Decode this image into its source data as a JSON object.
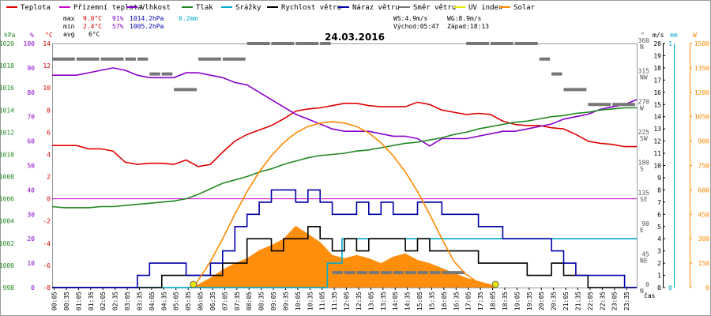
{
  "chart_data": {
    "type": "line",
    "title": "24.03.2016",
    "xlabel": "čas",
    "x_ticks": [
      "00:05",
      "00:35",
      "01:05",
      "01:35",
      "02:05",
      "02:35",
      "03:05",
      "03:35",
      "04:05",
      "04:35",
      "05:05",
      "05:35",
      "06:05",
      "06:35",
      "07:05",
      "07:35",
      "08:05",
      "08:35",
      "09:05",
      "09:35",
      "10:05",
      "10:35",
      "11:05",
      "11:35",
      "12:05",
      "12:35",
      "13:05",
      "13:35",
      "14:05",
      "14:35",
      "15:05",
      "15:35",
      "16:05",
      "16:35",
      "17:05",
      "17:35",
      "18:05",
      "18:35",
      "19:05",
      "19:35",
      "20:05",
      "20:35",
      "21:05",
      "21:35",
      "22:05",
      "22:35",
      "23:05",
      "23:35"
    ],
    "legend": [
      {
        "name": "Teplota",
        "color": "#e00000"
      },
      {
        "name": "Přízemní teplota",
        "color": "#cc00cc"
      },
      {
        "name": "Vlhkost",
        "color": "#8800cc"
      },
      {
        "name": "Tlak",
        "color": "#228822"
      },
      {
        "name": "Srážky",
        "color": "#00aacc"
      },
      {
        "name": "Rychlost větru",
        "color": "#000000"
      },
      {
        "name": "Náraz větru",
        "color": "#0000aa"
      },
      {
        "name": "Směr větru",
        "color": "#777777"
      },
      {
        "name": "UV index",
        "color": "#e6e600"
      },
      {
        "name": "Solar",
        "color": "#ff8800"
      }
    ],
    "stats": {
      "max_label": "max",
      "max_temp": "9.0°C",
      "max_hum": "91%",
      "max_press": "1014.2hPa",
      "max_rain": "0.2mm",
      "min_label": "min",
      "min_temp": "2.4°C",
      "min_hum": "57%",
      "min_press": "1005.2hPa",
      "avg_label": "avg",
      "avg_temp": "6°C",
      "ws": "WS:4.9m/s",
      "wg": "WG:8.9m/s",
      "sunrise": "Východ:05:47",
      "sunset": "Západ:18:13"
    },
    "axes": {
      "pressure": {
        "label": "hPa",
        "min": 998,
        "max": 1020,
        "ticks": [
          998,
          1000,
          1002,
          1004,
          1006,
          1008,
          1010,
          1012,
          1014,
          1016,
          1018,
          1020
        ],
        "color": "#228822"
      },
      "humidity": {
        "label": "%",
        "min": 0,
        "max": 100,
        "ticks": [
          0,
          10,
          20,
          30,
          40,
          50,
          60,
          70,
          80,
          90,
          100
        ],
        "color": "#8800cc"
      },
      "temperature": {
        "label": "°C",
        "min": -8,
        "max": 14,
        "ticks": [
          -8,
          -6,
          -4,
          -2,
          0,
          2,
          4,
          6,
          8,
          10,
          12,
          14
        ],
        "color": "#e00000"
      },
      "direction": {
        "label": "°",
        "min": 0,
        "max": 360,
        "ticks": [
          0,
          45,
          90,
          135,
          180,
          225,
          270,
          315,
          360
        ],
        "compass": [
          "N",
          "NE",
          "E",
          "SE",
          "S",
          "SW",
          "W",
          "NW",
          "N"
        ],
        "color": "#555555"
      },
      "wind": {
        "label": "m/s",
        "min": 0,
        "max": 20,
        "ticks": [
          0,
          1,
          2,
          3,
          4,
          5,
          6,
          7,
          8,
          9,
          10,
          11,
          12,
          13,
          14,
          15,
          16,
          17,
          18,
          19,
          20
        ],
        "color": "#000000"
      },
      "rain": {
        "label": "mm",
        "min": 0,
        "max": 1,
        "ticks": [
          0,
          1
        ],
        "color": "#00aacc"
      },
      "solar": {
        "label": "W",
        "min": 0,
        "max": 1500,
        "ticks": [
          0,
          150,
          300,
          450,
          600,
          750,
          900,
          1050,
          1200,
          1350,
          1500
        ],
        "color": "#ff8800"
      }
    },
    "series": [
      {
        "name": "Teplota",
        "axis": "temperature",
        "color": "#e00000",
        "x": [
          0,
          0.5,
          1,
          1.5,
          2,
          2.5,
          3,
          3.5,
          4,
          4.5,
          5,
          5.5,
          6,
          6.5,
          7,
          7.5,
          8,
          8.5,
          9,
          9.5,
          10,
          10.5,
          11,
          11.5,
          12,
          12.5,
          13,
          13.5,
          14,
          14.5,
          15,
          15.5,
          16,
          16.5,
          17,
          17.5,
          18,
          18.5,
          19,
          19.5,
          20,
          20.5,
          21,
          21.5,
          22,
          22.5,
          23,
          23.5,
          24
        ],
        "values": [
          4.8,
          4.8,
          4.8,
          4.5,
          4.5,
          4.3,
          3.3,
          3.1,
          3.2,
          3.2,
          3.1,
          3.5,
          2.9,
          3.1,
          4.2,
          5.2,
          5.8,
          6.2,
          6.6,
          7.2,
          7.9,
          8.1,
          8.2,
          8.4,
          8.6,
          8.6,
          8.4,
          8.3,
          8.3,
          8.3,
          8.7,
          8.5,
          8.0,
          7.8,
          7.6,
          7.7,
          7.6,
          7.0,
          6.7,
          6.6,
          6.6,
          6.4,
          6.3,
          5.8,
          5.2,
          5.0,
          4.9,
          4.7,
          4.7
        ]
      },
      {
        "name": "Přízemní teplota",
        "axis": "temperature",
        "color": "#cc00cc",
        "x": [
          0,
          24
        ],
        "values": [
          0,
          0
        ]
      },
      {
        "name": "Vlhkost",
        "axis": "humidity",
        "color": "#8800cc",
        "x": [
          0,
          0.5,
          1,
          1.5,
          2,
          2.5,
          3,
          3.5,
          4,
          4.5,
          5,
          5.5,
          6,
          6.5,
          7,
          7.5,
          8,
          8.5,
          9,
          9.5,
          10,
          10.5,
          11,
          11.5,
          12,
          12.5,
          13,
          13.5,
          14,
          14.5,
          15,
          15.5,
          16,
          16.5,
          17,
          17.5,
          18,
          18.5,
          19,
          19.5,
          20,
          20.5,
          21,
          21.5,
          22,
          22.5,
          23,
          23.5,
          24
        ],
        "values": [
          87,
          87,
          87,
          88,
          89,
          90,
          89,
          87,
          86,
          86,
          86,
          88,
          88,
          87,
          86,
          84,
          83,
          80,
          77,
          74,
          71,
          69,
          67,
          65,
          64,
          64,
          64,
          63,
          62,
          62,
          61,
          58,
          61,
          61,
          61,
          62,
          63,
          64,
          64,
          65,
          66,
          67,
          69,
          70,
          71,
          73,
          74,
          75,
          77
        ]
      },
      {
        "name": "Tlak",
        "axis": "pressure",
        "color": "#228822",
        "x": [
          0,
          0.5,
          1,
          1.5,
          2,
          2.5,
          3,
          3.5,
          4,
          4.5,
          5,
          5.5,
          6,
          6.5,
          7,
          7.5,
          8,
          8.5,
          9,
          9.5,
          10,
          10.5,
          11,
          11.5,
          12,
          12.5,
          13,
          13.5,
          14,
          14.5,
          15,
          15.5,
          16,
          16.5,
          17,
          17.5,
          18,
          18.5,
          19,
          19.5,
          20,
          20.5,
          21,
          21.5,
          22,
          22.5,
          23,
          23.5,
          24
        ],
        "values": [
          1005.3,
          1005.2,
          1005.2,
          1005.2,
          1005.3,
          1005.3,
          1005.4,
          1005.5,
          1005.6,
          1005.7,
          1005.8,
          1006.0,
          1006.4,
          1006.9,
          1007.4,
          1007.7,
          1008.0,
          1008.4,
          1008.7,
          1009.1,
          1009.4,
          1009.7,
          1009.9,
          1010.0,
          1010.1,
          1010.3,
          1010.4,
          1010.6,
          1010.8,
          1011.0,
          1011.1,
          1011.3,
          1011.5,
          1011.8,
          1012.0,
          1012.3,
          1012.5,
          1012.7,
          1012.9,
          1013.0,
          1013.2,
          1013.4,
          1013.5,
          1013.7,
          1013.8,
          1014.0,
          1014.1,
          1014.2,
          1014.2
        ]
      },
      {
        "name": "Srážky",
        "axis": "rain",
        "color": "#00aacc",
        "x": [
          0,
          11.3,
          11.3,
          11.9,
          11.9,
          24
        ],
        "values": [
          0,
          0,
          0.1,
          0.1,
          0.2,
          0.2
        ]
      },
      {
        "name": "Rychlost větru",
        "axis": "wind",
        "color": "#000000",
        "x": [
          0,
          0.5,
          1,
          1.5,
          2,
          2.5,
          3,
          3.5,
          4,
          4.5,
          5,
          5.5,
          6,
          6.5,
          7,
          7.5,
          8,
          8.5,
          9,
          9.5,
          10,
          10.5,
          11,
          11.5,
          12,
          12.5,
          13,
          13.5,
          14,
          14.5,
          15,
          15.5,
          16,
          16.5,
          17,
          17.5,
          18,
          18.5,
          19,
          19.5,
          20,
          20.5,
          21,
          21.5,
          22,
          22.5,
          23,
          23.5,
          24
        ],
        "values": [
          0,
          0,
          0,
          0,
          0,
          0,
          0,
          0,
          0,
          1,
          1,
          1,
          1,
          1,
          2,
          2,
          4,
          4,
          3,
          4,
          4,
          5,
          4,
          3,
          4,
          3,
          4,
          4,
          4,
          3,
          4,
          3,
          3,
          3,
          3,
          2,
          2,
          2,
          2,
          1,
          1,
          2,
          1,
          1,
          0,
          0,
          0,
          0,
          0
        ]
      },
      {
        "name": "Náraz větru",
        "axis": "wind",
        "color": "#0000aa",
        "x": [
          0,
          0.5,
          1,
          1.5,
          2,
          2.5,
          3,
          3.5,
          4,
          4.5,
          5,
          5.5,
          6,
          6.5,
          7,
          7.5,
          8,
          8.5,
          9,
          9.5,
          10,
          10.5,
          11,
          11.5,
          12,
          12.5,
          13,
          13.5,
          14,
          14.5,
          15,
          15.5,
          16,
          16.5,
          17,
          17.5,
          18,
          18.5,
          19,
          19.5,
          20,
          20.5,
          21,
          21.5,
          22,
          22.5,
          23,
          23.5,
          24
        ],
        "values": [
          0,
          0,
          0,
          0,
          0,
          0,
          0,
          1,
          2,
          2,
          2,
          1,
          1,
          2,
          3,
          5,
          6,
          7,
          8,
          8,
          7,
          8,
          7,
          6,
          6,
          7,
          6,
          7,
          6,
          6,
          7,
          7,
          6,
          6,
          6,
          5,
          5,
          4,
          4,
          4,
          4,
          3,
          2,
          1,
          1,
          1,
          1,
          0,
          0
        ]
      },
      {
        "name": "Směr větru",
        "axis": "direction",
        "color": "#777777",
        "x": [
          0,
          1,
          2,
          3,
          3.5,
          4,
          4.5,
          5,
          6,
          7,
          8,
          9,
          10,
          11,
          11.5,
          12,
          12.5,
          13,
          13.5,
          14,
          14.5,
          15,
          15.5,
          16,
          17,
          18,
          19,
          20,
          20.5,
          21,
          22,
          23,
          24
        ],
        "values": [
          337,
          337,
          337,
          337,
          337,
          315,
          315,
          292,
          337,
          337,
          360,
          360,
          360,
          360,
          22,
          22,
          22,
          22,
          22,
          22,
          22,
          22,
          22,
          22,
          360,
          360,
          360,
          337,
          315,
          292,
          270,
          270,
          270
        ]
      },
      {
        "name": "Solar",
        "axis": "solar",
        "color": "#ff8800",
        "x": [
          0,
          5.5,
          6,
          6.5,
          7,
          7.5,
          8,
          8.5,
          9,
          9.5,
          10,
          10.5,
          11,
          11.5,
          12,
          12.5,
          13,
          13.5,
          14,
          14.5,
          15,
          15.5,
          16,
          16.5,
          17,
          17.5,
          18,
          18.3,
          24
        ],
        "values": [
          0,
          0,
          20,
          60,
          110,
          150,
          180,
          230,
          260,
          300,
          380,
          330,
          280,
          200,
          180,
          200,
          180,
          150,
          190,
          210,
          170,
          150,
          120,
          90,
          60,
          40,
          20,
          0,
          0
        ]
      },
      {
        "name": "Solar theoretical",
        "axis": "solar",
        "color": "#ff8800",
        "x": [
          5.8,
          6.5,
          7,
          7.5,
          8,
          8.5,
          9,
          9.5,
          10,
          10.5,
          11,
          11.5,
          12,
          12.5,
          13,
          13.5,
          14,
          14.5,
          15,
          15.5,
          16,
          16.5,
          17,
          17.5,
          18.2
        ],
        "values": [
          0,
          160,
          300,
          450,
          590,
          710,
          810,
          890,
          950,
          990,
          1010,
          1020,
          1010,
          990,
          950,
          890,
          810,
          710,
          590,
          450,
          300,
          160,
          80,
          30,
          0
        ]
      },
      {
        "name": "UV index",
        "axis": "wind",
        "color": "#e6e600",
        "x": [
          5.8,
          18.2
        ],
        "values": [
          0,
          0
        ]
      }
    ]
  }
}
